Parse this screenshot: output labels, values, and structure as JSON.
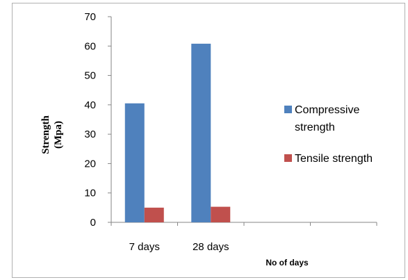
{
  "chart_data": {
    "type": "bar",
    "title": "",
    "xlabel": "No of days",
    "ylabel_line1": "Strength",
    "ylabel_line2": "(Mpa)",
    "ylim": [
      0,
      70
    ],
    "yticks": [
      "0",
      "10",
      "20",
      "30",
      "40",
      "50",
      "60",
      "70"
    ],
    "categories": [
      "7 days",
      "28 days",
      "",
      ""
    ],
    "series": [
      {
        "name": "Compressive strength",
        "legend_line1": "Compressive",
        "legend_line2": "strength",
        "color": "#4f81bd",
        "values": [
          40.5,
          60.8,
          null,
          null
        ]
      },
      {
        "name": "Tensile strength",
        "legend_line1": "Tensile strength",
        "legend_line2": "",
        "color": "#c0504d",
        "values": [
          5.0,
          5.3,
          null,
          null
        ]
      }
    ],
    "grid": false,
    "legend_position": "right"
  }
}
